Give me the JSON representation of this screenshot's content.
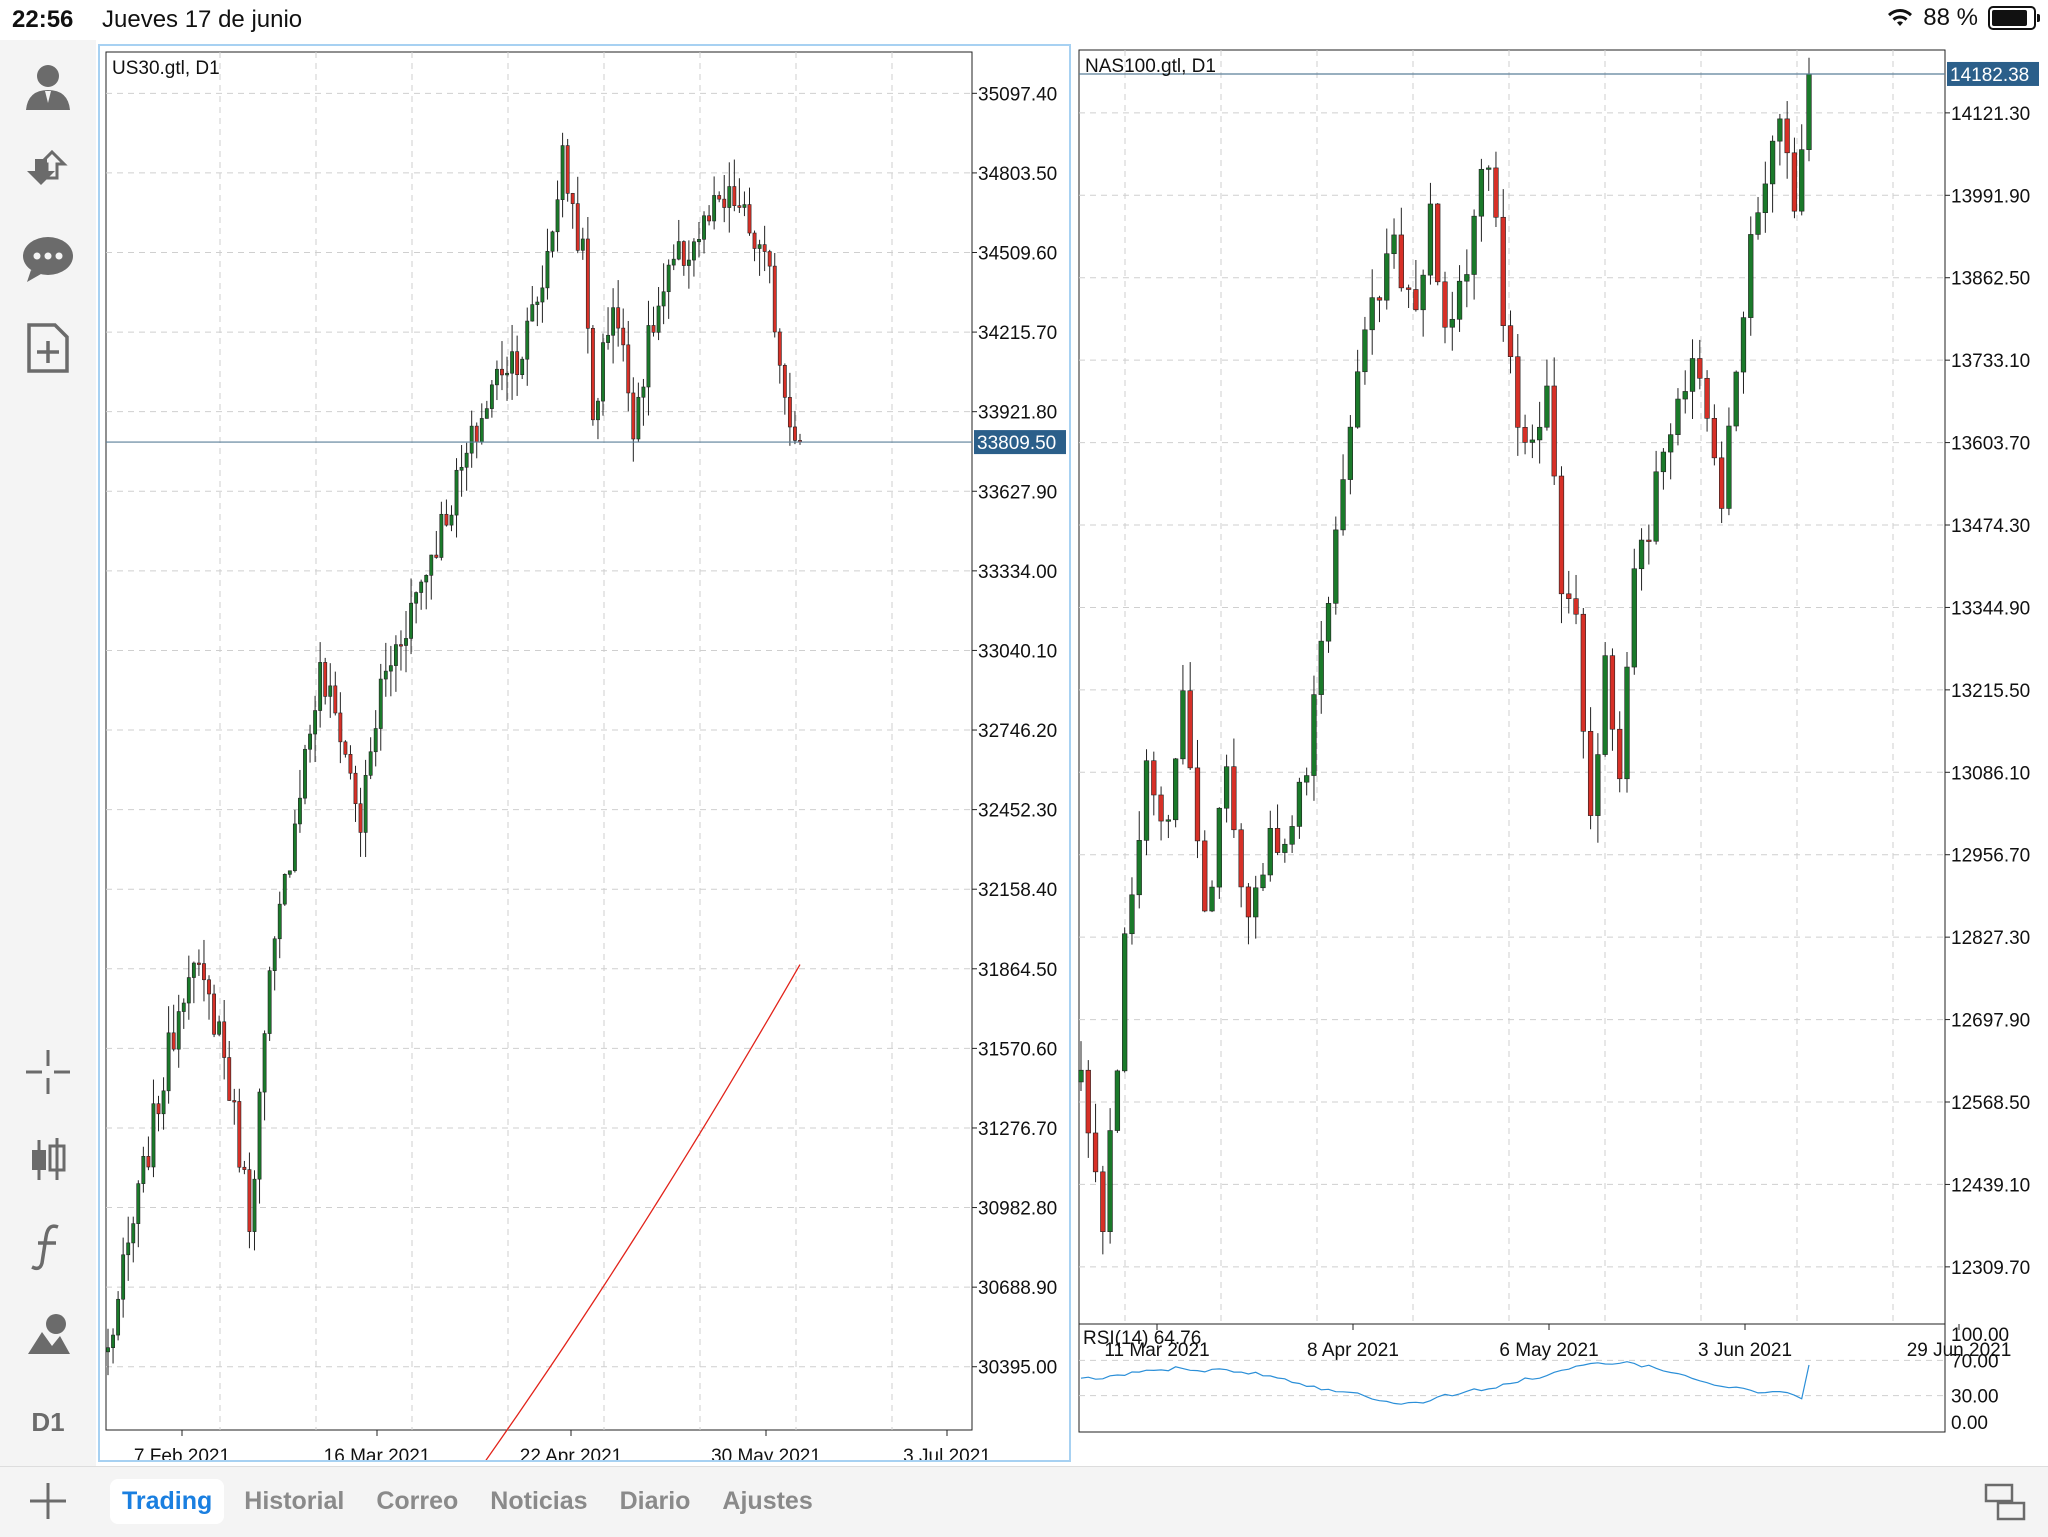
{
  "status": {
    "time": "22:56",
    "date": "Jueves 17 de junio",
    "battery": "88 %",
    "battery_level": 0.88
  },
  "toolbar": {
    "items": [
      {
        "icon": "account-icon"
      },
      {
        "icon": "trade-arrows-icon"
      },
      {
        "icon": "chat-icon"
      },
      {
        "icon": "new-order-icon"
      },
      {
        "icon": "crosshair-icon"
      },
      {
        "icon": "candlestick-icon"
      },
      {
        "icon": "indicators-icon"
      },
      {
        "icon": "objects-icon"
      }
    ],
    "timeframe": "D1"
  },
  "tabs": {
    "items": [
      {
        "label": "Trading",
        "active": true
      },
      {
        "label": "Historial",
        "active": false
      },
      {
        "label": "Correo",
        "active": false
      },
      {
        "label": "Noticias",
        "active": false
      },
      {
        "label": "Diario",
        "active": false
      },
      {
        "label": "Ajustes",
        "active": false
      }
    ]
  },
  "colors": {
    "bull": "#1a7a2a",
    "bear": "#d73027",
    "price_line": "#5b7f99",
    "price_tag": "#2b5f8a",
    "ma": "#e2231a",
    "rsi": "#2b8fd8",
    "grid": "#cfcfcf",
    "active_border": "#a7d1f2"
  },
  "chart_data": [
    {
      "type": "candlestick",
      "title": "US30.gtl, D1",
      "current_price": "33809.50",
      "current_value": 33809.5,
      "ylim": [
        30250,
        35250
      ],
      "y_ticks": [
        "35097.40",
        "34803.50",
        "34509.60",
        "34215.70",
        "33921.80",
        "33627.90",
        "33334.00",
        "33040.10",
        "32746.20",
        "32452.30",
        "32158.40",
        "31864.50",
        "31570.60",
        "31276.70",
        "30982.80",
        "30688.90",
        "30395.00"
      ],
      "x_ticks": [
        "7 Feb 2021",
        "16 Mar 2021",
        "22 Apr 2021",
        "30 May 2021",
        "3 Jul 2021"
      ],
      "start": 30450,
      "end": 33810,
      "low": 30550,
      "high": 34950,
      "ma_start": 30050,
      "ma_end": 31880,
      "anchors": [
        [
          0,
          30450
        ],
        [
          8,
          31200
        ],
        [
          16,
          31900
        ],
        [
          22,
          31650
        ],
        [
          26,
          31200
        ],
        [
          28,
          30950
        ],
        [
          32,
          31800
        ],
        [
          38,
          32550
        ],
        [
          42,
          32950
        ],
        [
          46,
          32750
        ],
        [
          50,
          32400
        ],
        [
          54,
          32900
        ],
        [
          60,
          33200
        ],
        [
          66,
          33500
        ],
        [
          72,
          33800
        ],
        [
          78,
          34100
        ],
        [
          82,
          34150
        ],
        [
          86,
          34400
        ],
        [
          90,
          34850
        ],
        [
          94,
          34500
        ],
        [
          96,
          33900
        ],
        [
          100,
          34350
        ],
        [
          104,
          33900
        ],
        [
          108,
          34250
        ],
        [
          112,
          34450
        ],
        [
          116,
          34550
        ],
        [
          120,
          34650
        ],
        [
          124,
          34700
        ],
        [
          128,
          34550
        ],
        [
          131,
          34400
        ],
        [
          134,
          34000
        ],
        [
          137,
          33810
        ]
      ]
    },
    {
      "type": "candlestick",
      "title": "NAS100.gtl, D1",
      "current_price": "14182.38",
      "current_value": 14182.38,
      "ylim": [
        12220,
        14220
      ],
      "y_ticks": [
        "14121.30",
        "13991.90",
        "13862.50",
        "13733.10",
        "13603.70",
        "13474.30",
        "13344.90",
        "13215.50",
        "13086.10",
        "12956.70",
        "12827.30",
        "12697.90",
        "12568.50",
        "12439.10",
        "12309.70"
      ],
      "x_ticks": [
        "11 Mar 2021",
        "8 Apr 2021",
        "6 May 2021",
        "3 Jun 2021",
        "29 Jun 2021"
      ],
      "start": 12600,
      "end": 14182,
      "low": 12250,
      "high": 14190,
      "anchors": [
        [
          0,
          12600
        ],
        [
          3,
          12350
        ],
        [
          6,
          12800
        ],
        [
          9,
          13100
        ],
        [
          12,
          13000
        ],
        [
          14,
          13200
        ],
        [
          17,
          12850
        ],
        [
          20,
          13100
        ],
        [
          23,
          12850
        ],
        [
          26,
          13000
        ],
        [
          28,
          12950
        ],
        [
          31,
          13100
        ],
        [
          34,
          13350
        ],
        [
          37,
          13650
        ],
        [
          40,
          13820
        ],
        [
          43,
          13900
        ],
        [
          46,
          13800
        ],
        [
          48,
          13950
        ],
        [
          50,
          13780
        ],
        [
          53,
          13900
        ],
        [
          56,
          14050
        ],
        [
          58,
          13800
        ],
        [
          60,
          13650
        ],
        [
          62,
          13600
        ],
        [
          64,
          13700
        ],
        [
          66,
          13400
        ],
        [
          68,
          13350
        ],
        [
          70,
          13000
        ],
        [
          72,
          13250
        ],
        [
          74,
          13100
        ],
        [
          76,
          13400
        ],
        [
          78,
          13450
        ],
        [
          80,
          13600
        ],
        [
          82,
          13700
        ],
        [
          84,
          13720
        ],
        [
          86,
          13650
        ],
        [
          88,
          13500
        ],
        [
          90,
          13700
        ],
        [
          92,
          13900
        ],
        [
          94,
          14000
        ],
        [
          96,
          14100
        ],
        [
          98,
          14000
        ],
        [
          100,
          14182
        ]
      ],
      "indicator": {
        "name": "RSI(14) 64.76",
        "ylim": [
          0,
          100
        ],
        "ticks": [
          "100.00",
          "70.00",
          "30.00",
          "0.00"
        ],
        "tick_values": [
          100,
          70,
          30,
          0
        ]
      }
    }
  ]
}
